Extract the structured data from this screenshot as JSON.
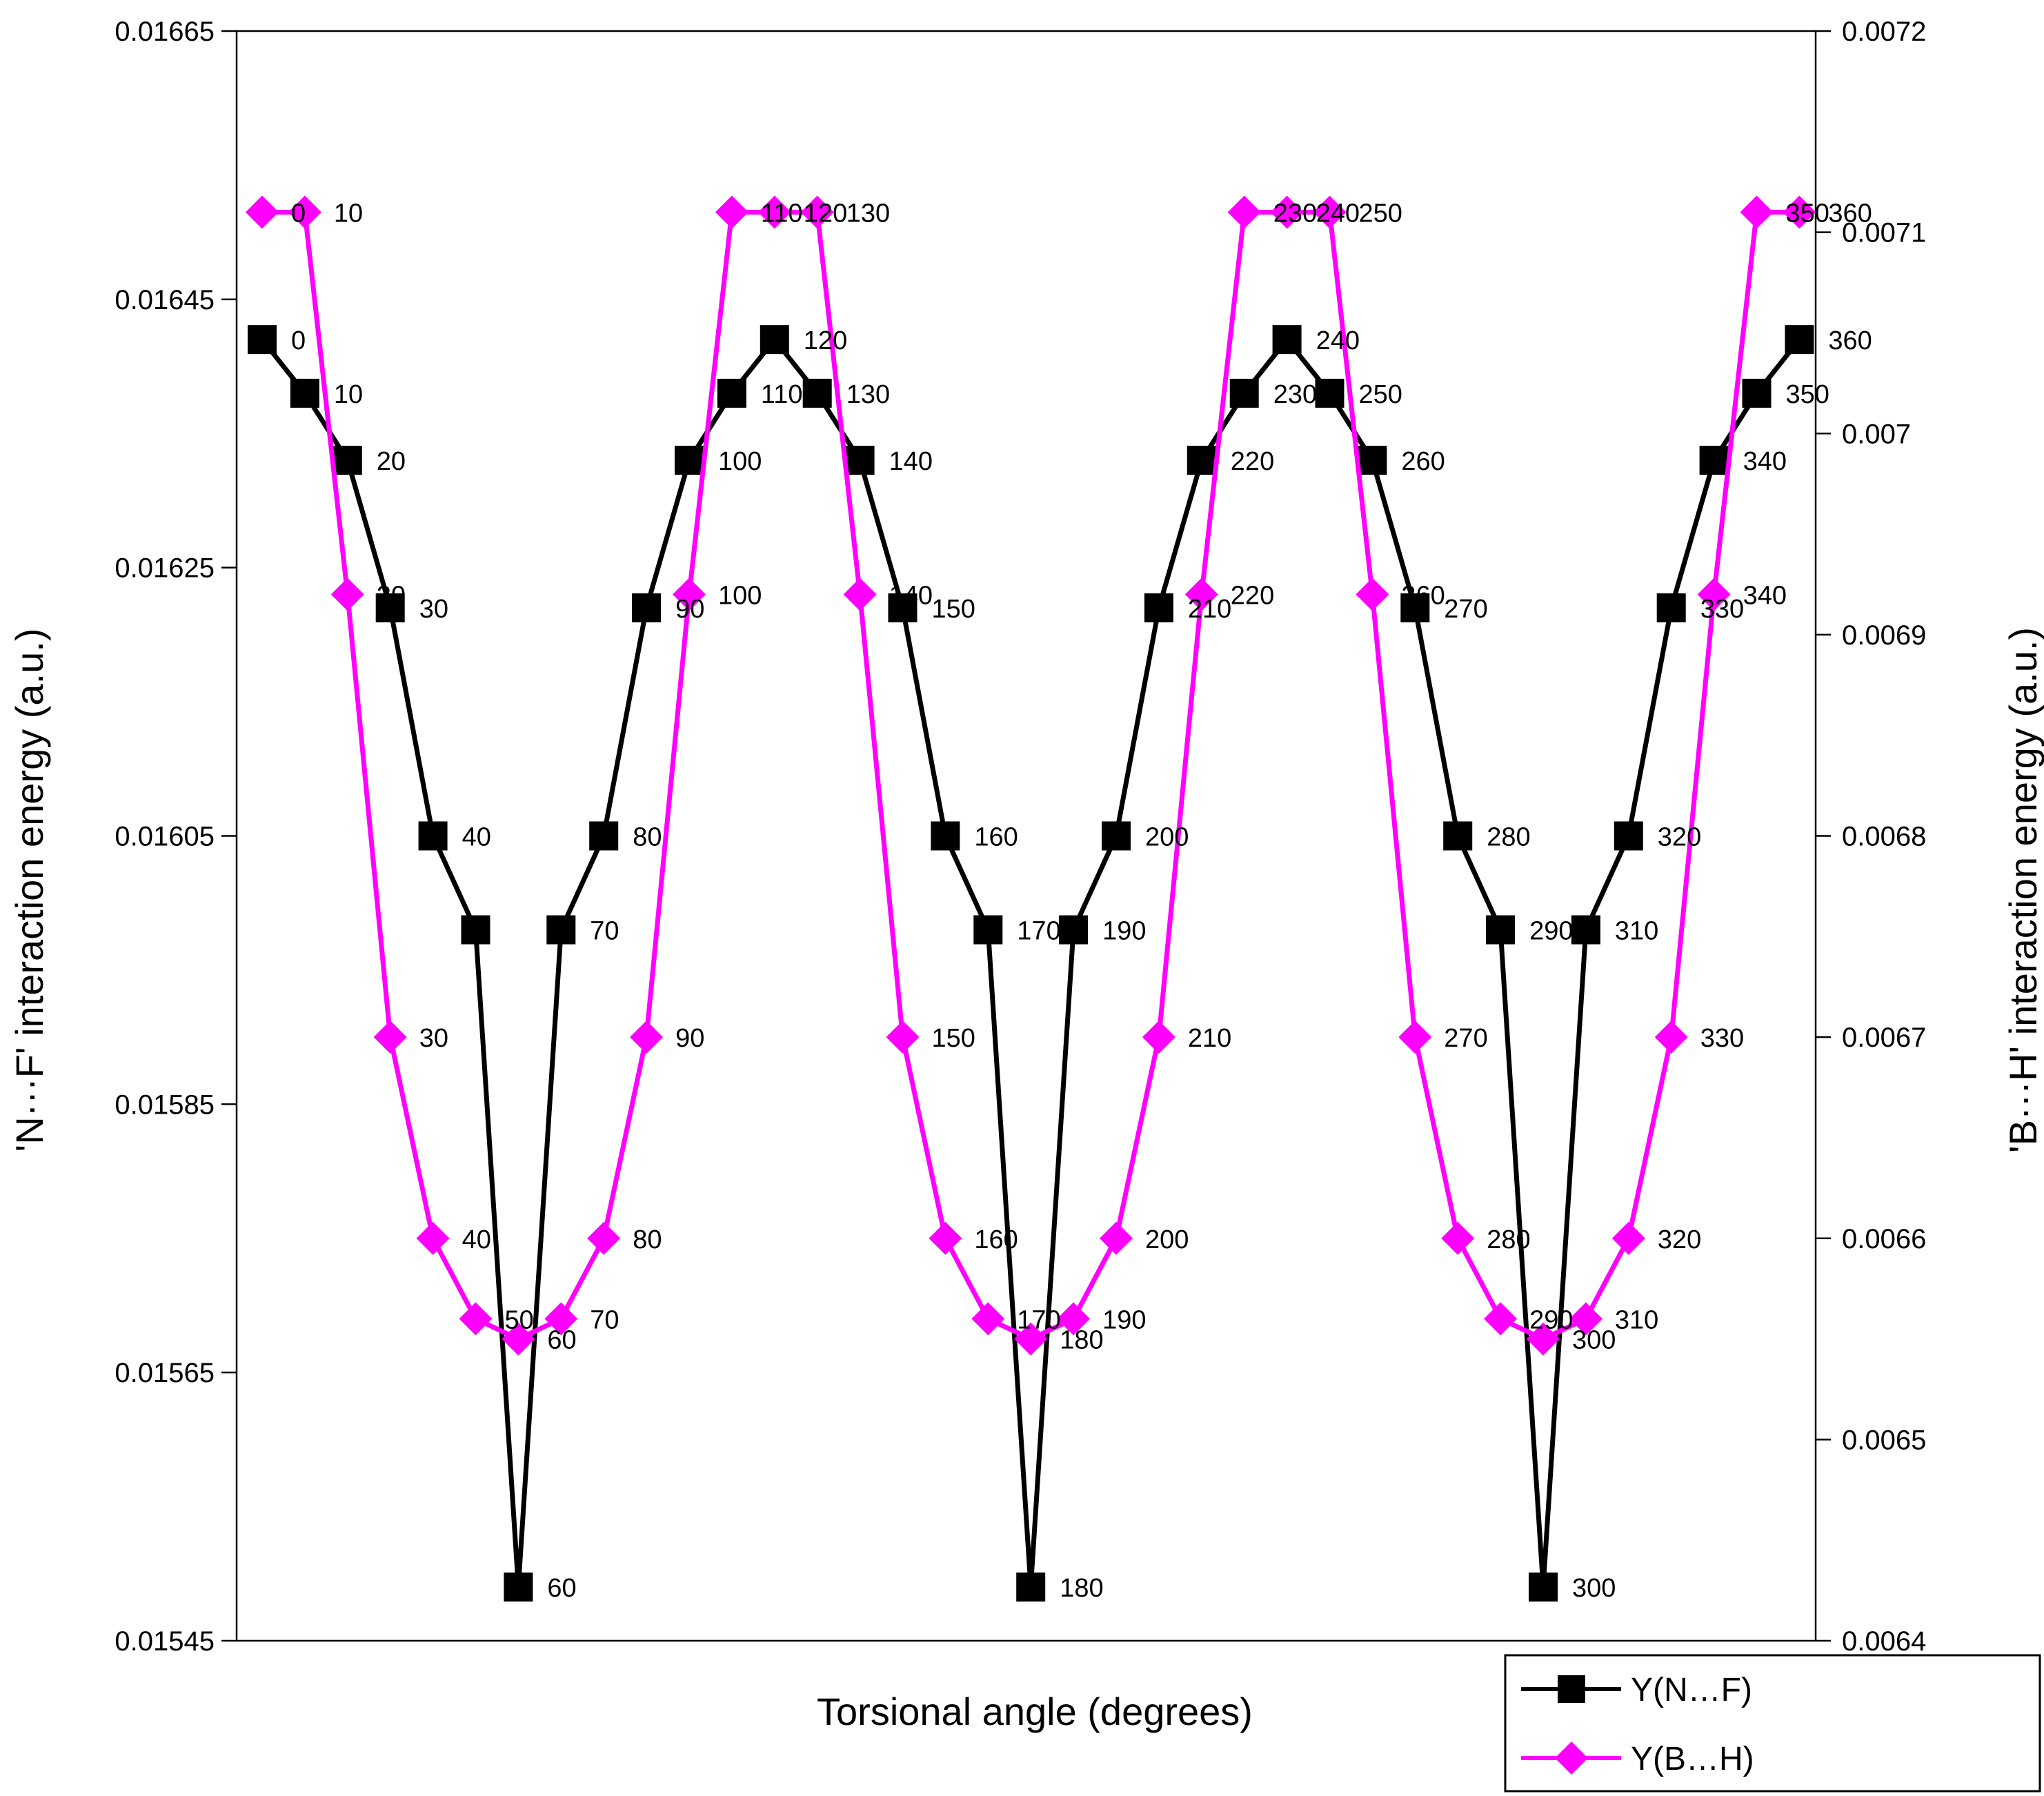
{
  "chart_data": {
    "type": "line",
    "title": "",
    "xlabel": "Torsional angle (degrees)",
    "ylabel_left": "'N···F' interaction energy (a.u.)",
    "ylabel_right": "'B···H' interaction energy (a.u.)",
    "ylim_left": [
      0.01545,
      0.01665
    ],
    "ylim_right": [
      0.0064,
      0.0072
    ],
    "yticks_left": [
      "0.01545",
      "0.01565",
      "0.01585",
      "0.01605",
      "0.01625",
      "0.01645",
      "0.01665"
    ],
    "yticks_right": [
      "0.0064",
      "0.0065",
      "0.0066",
      "0.0067",
      "0.0068",
      "0.0069",
      "0.007",
      "0.0071",
      "0.0072"
    ],
    "grid": false,
    "legend_position": "bottom-right",
    "x": [
      0,
      10,
      20,
      30,
      40,
      50,
      60,
      70,
      80,
      90,
      100,
      110,
      120,
      130,
      140,
      150,
      160,
      170,
      180,
      190,
      200,
      210,
      220,
      230,
      240,
      250,
      260,
      270,
      280,
      290,
      300,
      310,
      320,
      330,
      340,
      350,
      360
    ],
    "series": [
      {
        "name": "Y(N…F)",
        "axis": "left",
        "color": "#000000",
        "marker": "square",
        "values": [
          0.01642,
          0.01638,
          0.01633,
          0.01622,
          0.01605,
          0.01598,
          0.01549,
          0.01598,
          0.01605,
          0.01622,
          0.01633,
          0.01638,
          0.01642,
          0.01638,
          0.01633,
          0.01622,
          0.01605,
          0.01598,
          0.01549,
          0.01598,
          0.01605,
          0.01622,
          0.01633,
          0.01638,
          0.01642,
          0.01638,
          0.01633,
          0.01622,
          0.01605,
          0.01598,
          0.01549,
          0.01598,
          0.01605,
          0.01622,
          0.01633,
          0.01638,
          0.01642
        ],
        "labels": [
          "0",
          "10",
          "20",
          "30",
          "40",
          "",
          "60",
          "70",
          "80",
          "90",
          "100",
          "110",
          "120",
          "130",
          "140",
          "150",
          "160",
          "170",
          "180",
          "190",
          "200",
          "210",
          "220",
          "230",
          "240",
          "250",
          "260",
          "270",
          "280",
          "290",
          "300",
          "310",
          "320",
          "330",
          "340",
          "350",
          "360"
        ]
      },
      {
        "name": "Y(B…H)",
        "axis": "right",
        "color": "#ff00ff",
        "marker": "diamond",
        "values": [
          0.00711,
          0.00711,
          0.00692,
          0.0067,
          0.0066,
          0.00656,
          0.00655,
          0.00656,
          0.0066,
          0.0067,
          0.00692,
          0.00711,
          0.00711,
          0.00711,
          0.00692,
          0.0067,
          0.0066,
          0.00656,
          0.00655,
          0.00656,
          0.0066,
          0.0067,
          0.00692,
          0.00711,
          0.00711,
          0.00711,
          0.00692,
          0.0067,
          0.0066,
          0.00656,
          0.00655,
          0.00656,
          0.0066,
          0.0067,
          0.00692,
          0.00711,
          0.00711
        ],
        "labels": [
          "0",
          "10",
          "20",
          "30",
          "40",
          "50",
          "60",
          "70",
          "80",
          "90",
          "100",
          "110",
          "120",
          "130",
          "140",
          "150",
          "160",
          "170",
          "180",
          "190",
          "200",
          "210",
          "220",
          "230",
          "240",
          "250",
          "260",
          "270",
          "280",
          "290",
          "300",
          "310",
          "320",
          "330",
          "340",
          "350",
          "360"
        ]
      }
    ]
  },
  "legend": {
    "items": [
      {
        "label": "Y(N…F)",
        "color": "#000000",
        "marker": "square"
      },
      {
        "label": "Y(B…H)",
        "color": "#ff00ff",
        "marker": "diamond"
      }
    ]
  }
}
